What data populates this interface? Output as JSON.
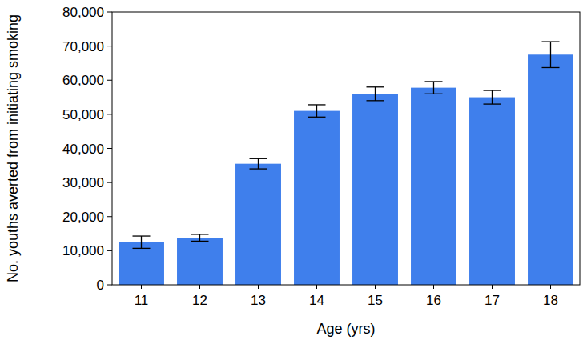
{
  "chart_data": {
    "type": "bar",
    "x_label": "Age (yrs)",
    "y_label": "No. youths averted from initiating smoking",
    "categories": [
      "11",
      "12",
      "13",
      "14",
      "15",
      "16",
      "17",
      "18"
    ],
    "values": [
      12500,
      13800,
      35500,
      51000,
      56000,
      57800,
      55000,
      67500
    ],
    "errors": [
      1800,
      1000,
      1500,
      1800,
      2000,
      1800,
      2000,
      3800
    ],
    "color": "#3f7fec",
    "ylim": [
      0,
      80000
    ],
    "yticks": [
      0,
      {
        "value": 10000,
        "label": "10,000"
      },
      {
        "value": 20000,
        "label": "20,000"
      },
      {
        "value": 30000,
        "label": "30,000"
      },
      {
        "value": 40000,
        "label": "40,000"
      },
      {
        "value": 50000,
        "label": "50,000"
      },
      {
        "value": 60000,
        "label": "60,000"
      },
      {
        "value": 70000,
        "label": "70,000"
      },
      {
        "value": 80000,
        "label": "80,000"
      }
    ],
    "grid": false
  }
}
